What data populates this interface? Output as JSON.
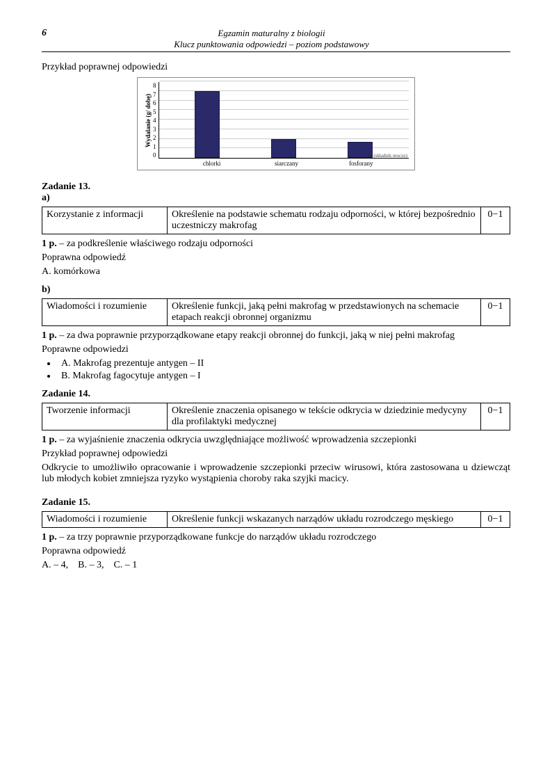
{
  "header": {
    "page_number": "6",
    "title_line1": "Egzamin maturalny z biologii",
    "title_line2": "Klucz punktowania odpowiedzi – poziom podstawowy"
  },
  "example_label": "Przykład poprawnej odpowiedzi",
  "chart": {
    "type": "bar",
    "ylabel": "Wydalanie (g/ dobę)",
    "ylim": [
      0,
      8
    ],
    "ytick_step": 1,
    "yticks": [
      "0",
      "1",
      "2",
      "3",
      "4",
      "5",
      "6",
      "7",
      "8"
    ],
    "categories": [
      "chlorki",
      "siarczany",
      "fosforany"
    ],
    "values": [
      7.0,
      2.0,
      1.7
    ],
    "bar_color": "#2a2a6a",
    "grid_color": "#cccccc",
    "background_color": "#ffffff",
    "border_color": "#888888",
    "x_note": "(składnik moczu)",
    "label_fontsize": 9
  },
  "task13": {
    "title": "Zadanie 13.",
    "part_a": "a)",
    "table_a": {
      "col1": "Korzystanie z informacji",
      "col2": "Określenie na podstawie schematu rodzaju odporności, w której bezpośrednio uczestniczy makrofag",
      "col3": "0−1"
    },
    "scoring_a_prefix": "1 p.",
    "scoring_a_text": " – za podkreślenie właściwego rodzaju odporności",
    "answer_a_label": "Poprawna odpowiedź",
    "answer_a_text": "A. komórkowa",
    "part_b": "b)",
    "table_b": {
      "col1": "Wiadomości i rozumienie",
      "col2": "Określenie funkcji, jaką pełni makrofag w przedstawionych na schemacie etapach reakcji obronnej organizmu",
      "col3": "0−1"
    },
    "scoring_b_prefix": "1 p.",
    "scoring_b_text": " – za dwa poprawnie przyporządkowane etapy reakcji obronnej do funkcji, jaką w niej pełni makrofag",
    "answers_b_label": "Poprawne odpowiedzi",
    "bullet1": "A. Makrofag prezentuje antygen – II",
    "bullet2": "B. Makrofag fagocytuje antygen – I"
  },
  "task14": {
    "title": "Zadanie 14.",
    "table": {
      "col1": "Tworzenie informacji",
      "col2": "Określenie znaczenia opisanego w tekście odkrycia w dziedzinie medycyny dla profilaktyki medycznej",
      "col3": "0−1"
    },
    "scoring_prefix": "1 p.",
    "scoring_text": " – za wyjaśnienie znaczenia odkrycia uwzględniające możliwość wprowadzenia szczepionki",
    "example_label": "Przykład poprawnej odpowiedzi",
    "example_text": "Odkrycie to umożliwiło opracowanie i wprowadzenie szczepionki przeciw wirusowi, która zastosowana u dziewcząt lub młodych kobiet zmniejsza ryzyko wystąpienia choroby raka szyjki macicy."
  },
  "task15": {
    "title": "Zadanie 15.",
    "table": {
      "col1": "Wiadomości i rozumienie",
      "col2": "Określenie funkcji wskazanych narządów układu rozrodczego męskiego",
      "col3": "0−1"
    },
    "scoring_prefix": "1 p.",
    "scoring_text": " – za trzy poprawnie przyporządkowane funkcje do narządów układu rozrodczego",
    "answer_label": "Poprawna odpowiedź",
    "answer_text": "A. – 4,    B. – 3,    C. – 1"
  }
}
